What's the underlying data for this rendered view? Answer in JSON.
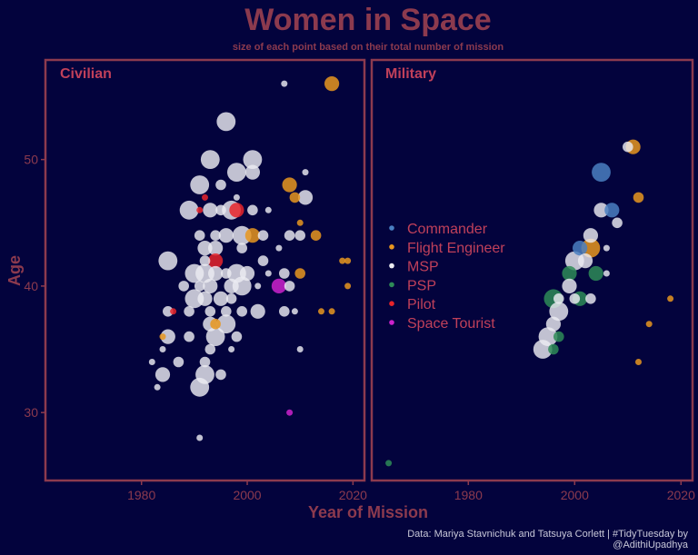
{
  "title": "Women in Space",
  "subtitle": "size of each point based on their total number of mission",
  "caption_line1": "Data: Mariya Stavnichuk and Tatsuya Corlett | #TidyTuesday by",
  "caption_line2": "@AdithiUpadhya",
  "colors": {
    "background": "#03033d",
    "text": "#8c3a4e",
    "frame": "#8c3a4e",
    "Commander": "#4a7fc1",
    "Flight Engineer": "#e8961e",
    "MSP": "#ececf2",
    "PSP": "#2e8b57",
    "Pilot": "#e8242a",
    "Space Tourist": "#cc22cc"
  },
  "chart_data": {
    "type": "scatter",
    "xlabel": "Year of Mission",
    "ylabel": "Age",
    "xlim": [
      1962,
      2022
    ],
    "ylim": [
      24.7,
      57.8
    ],
    "x_ticks": [
      1980,
      2000,
      2020
    ],
    "y_ticks": [
      30,
      40,
      50
    ],
    "size_meaning": "total number of missions",
    "legend": {
      "placement": "left of Military panel",
      "entries": [
        "Commander",
        "Flight Engineer",
        "MSP",
        "PSP",
        "Pilot",
        "Space Tourist"
      ]
    },
    "panels": [
      {
        "name": "Civilian",
        "points": [
          {
            "x": 2016,
            "y": 56,
            "size": 3,
            "role": "Flight Engineer"
          },
          {
            "x": 2007,
            "y": 56,
            "size": 1,
            "role": "MSP"
          },
          {
            "x": 1996,
            "y": 53,
            "size": 4,
            "role": "MSP"
          },
          {
            "x": 1993,
            "y": 50,
            "size": 4,
            "role": "MSP"
          },
          {
            "x": 2001,
            "y": 50,
            "size": 4,
            "role": "MSP"
          },
          {
            "x": 1998,
            "y": 49,
            "size": 4,
            "role": "MSP"
          },
          {
            "x": 2001,
            "y": 49,
            "size": 3,
            "role": "MSP"
          },
          {
            "x": 2011,
            "y": 49,
            "size": 1,
            "role": "MSP"
          },
          {
            "x": 1991,
            "y": 48,
            "size": 4,
            "role": "MSP"
          },
          {
            "x": 2008,
            "y": 48,
            "size": 3,
            "role": "Flight Engineer"
          },
          {
            "x": 1995,
            "y": 48,
            "size": 2,
            "role": "MSP"
          },
          {
            "x": 1992,
            "y": 47,
            "size": 1,
            "role": "Pilot"
          },
          {
            "x": 2009,
            "y": 47,
            "size": 2,
            "role": "Flight Engineer"
          },
          {
            "x": 2011,
            "y": 47,
            "size": 3,
            "role": "MSP"
          },
          {
            "x": 1998,
            "y": 47,
            "size": 1,
            "role": "MSP"
          },
          {
            "x": 1989,
            "y": 46,
            "size": 4,
            "role": "MSP"
          },
          {
            "x": 1993,
            "y": 46,
            "size": 3,
            "role": "MSP"
          },
          {
            "x": 1995,
            "y": 46,
            "size": 2,
            "role": "MSP"
          },
          {
            "x": 1997,
            "y": 46,
            "size": 4,
            "role": "MSP"
          },
          {
            "x": 1998,
            "y": 46,
            "size": 3,
            "role": "Pilot"
          },
          {
            "x": 2001,
            "y": 46,
            "size": 2,
            "role": "MSP"
          },
          {
            "x": 2004,
            "y": 46,
            "size": 1,
            "role": "MSP"
          },
          {
            "x": 1991,
            "y": 46,
            "size": 1,
            "role": "Pilot"
          },
          {
            "x": 2010,
            "y": 45,
            "size": 1,
            "role": "Flight Engineer"
          },
          {
            "x": 1991,
            "y": 44,
            "size": 2,
            "role": "MSP"
          },
          {
            "x": 1994,
            "y": 44,
            "size": 2,
            "role": "MSP"
          },
          {
            "x": 1996,
            "y": 44,
            "size": 3,
            "role": "MSP"
          },
          {
            "x": 1999,
            "y": 44,
            "size": 4,
            "role": "MSP"
          },
          {
            "x": 2001,
            "y": 44,
            "size": 3,
            "role": "Flight Engineer"
          },
          {
            "x": 2003,
            "y": 44,
            "size": 2,
            "role": "MSP"
          },
          {
            "x": 2008,
            "y": 44,
            "size": 2,
            "role": "MSP"
          },
          {
            "x": 2010,
            "y": 44,
            "size": 2,
            "role": "MSP"
          },
          {
            "x": 2013,
            "y": 44,
            "size": 2,
            "role": "Flight Engineer"
          },
          {
            "x": 1992,
            "y": 43,
            "size": 3,
            "role": "MSP"
          },
          {
            "x": 1994,
            "y": 43,
            "size": 3,
            "role": "MSP"
          },
          {
            "x": 1999,
            "y": 43,
            "size": 2,
            "role": "MSP"
          },
          {
            "x": 2006,
            "y": 43,
            "size": 1,
            "role": "MSP"
          },
          {
            "x": 1985,
            "y": 42,
            "size": 4,
            "role": "MSP"
          },
          {
            "x": 1992,
            "y": 42,
            "size": 2,
            "role": "MSP"
          },
          {
            "x": 1994,
            "y": 42,
            "size": 3,
            "role": "Pilot"
          },
          {
            "x": 2003,
            "y": 42,
            "size": 2,
            "role": "MSP"
          },
          {
            "x": 2018,
            "y": 42,
            "size": 1,
            "role": "Flight Engineer"
          },
          {
            "x": 2019,
            "y": 42,
            "size": 1,
            "role": "Flight Engineer"
          },
          {
            "x": 1990,
            "y": 41,
            "size": 4,
            "role": "MSP"
          },
          {
            "x": 1992,
            "y": 41,
            "size": 4,
            "role": "MSP"
          },
          {
            "x": 1994,
            "y": 41,
            "size": 3,
            "role": "MSP"
          },
          {
            "x": 1996,
            "y": 41,
            "size": 2,
            "role": "MSP"
          },
          {
            "x": 1998,
            "y": 41,
            "size": 4,
            "role": "MSP"
          },
          {
            "x": 2000,
            "y": 41,
            "size": 3,
            "role": "MSP"
          },
          {
            "x": 2004,
            "y": 41,
            "size": 1,
            "role": "MSP"
          },
          {
            "x": 2007,
            "y": 41,
            "size": 2,
            "role": "MSP"
          },
          {
            "x": 2010,
            "y": 41,
            "size": 2,
            "role": "Flight Engineer"
          },
          {
            "x": 1988,
            "y": 40,
            "size": 2,
            "role": "MSP"
          },
          {
            "x": 1991,
            "y": 40,
            "size": 2,
            "role": "MSP"
          },
          {
            "x": 1993,
            "y": 40,
            "size": 3,
            "role": "MSP"
          },
          {
            "x": 1997,
            "y": 40,
            "size": 3,
            "role": "MSP"
          },
          {
            "x": 1999,
            "y": 40,
            "size": 4,
            "role": "MSP"
          },
          {
            "x": 2002,
            "y": 40,
            "size": 1,
            "role": "MSP"
          },
          {
            "x": 2006,
            "y": 40,
            "size": 3,
            "role": "Space Tourist"
          },
          {
            "x": 2008,
            "y": 40,
            "size": 2,
            "role": "MSP"
          },
          {
            "x": 2019,
            "y": 40,
            "size": 1,
            "role": "Flight Engineer"
          },
          {
            "x": 1990,
            "y": 39,
            "size": 4,
            "role": "MSP"
          },
          {
            "x": 1992,
            "y": 39,
            "size": 3,
            "role": "MSP"
          },
          {
            "x": 1995,
            "y": 39,
            "size": 3,
            "role": "MSP"
          },
          {
            "x": 1997,
            "y": 39,
            "size": 2,
            "role": "MSP"
          },
          {
            "x": 1985,
            "y": 38,
            "size": 2,
            "role": "MSP"
          },
          {
            "x": 1986,
            "y": 38,
            "size": 1,
            "role": "Pilot"
          },
          {
            "x": 1989,
            "y": 38,
            "size": 2,
            "role": "MSP"
          },
          {
            "x": 1993,
            "y": 38,
            "size": 2,
            "role": "MSP"
          },
          {
            "x": 1996,
            "y": 38,
            "size": 2,
            "role": "MSP"
          },
          {
            "x": 1999,
            "y": 38,
            "size": 2,
            "role": "MSP"
          },
          {
            "x": 2002,
            "y": 38,
            "size": 3,
            "role": "MSP"
          },
          {
            "x": 2007,
            "y": 38,
            "size": 2,
            "role": "MSP"
          },
          {
            "x": 2009,
            "y": 38,
            "size": 1,
            "role": "MSP"
          },
          {
            "x": 2014,
            "y": 38,
            "size": 1,
            "role": "Flight Engineer"
          },
          {
            "x": 2016,
            "y": 38,
            "size": 1,
            "role": "Flight Engineer"
          },
          {
            "x": 1993,
            "y": 37,
            "size": 3,
            "role": "MSP"
          },
          {
            "x": 1994,
            "y": 37,
            "size": 2,
            "role": "Flight Engineer"
          },
          {
            "x": 1996,
            "y": 37,
            "size": 4,
            "role": "MSP"
          },
          {
            "x": 1989,
            "y": 36,
            "size": 2,
            "role": "MSP"
          },
          {
            "x": 1985,
            "y": 36,
            "size": 3,
            "role": "MSP"
          },
          {
            "x": 1984,
            "y": 36,
            "size": 1,
            "role": "Flight Engineer"
          },
          {
            "x": 1994,
            "y": 36,
            "size": 4,
            "role": "MSP"
          },
          {
            "x": 1998,
            "y": 36,
            "size": 2,
            "role": "MSP"
          },
          {
            "x": 1984,
            "y": 35,
            "size": 1,
            "role": "MSP"
          },
          {
            "x": 1993,
            "y": 35,
            "size": 2,
            "role": "MSP"
          },
          {
            "x": 1997,
            "y": 35,
            "size": 1,
            "role": "MSP"
          },
          {
            "x": 2010,
            "y": 35,
            "size": 1,
            "role": "MSP"
          },
          {
            "x": 1987,
            "y": 34,
            "size": 2,
            "role": "MSP"
          },
          {
            "x": 1982,
            "y": 34,
            "size": 1,
            "role": "MSP"
          },
          {
            "x": 1992,
            "y": 34,
            "size": 2,
            "role": "MSP"
          },
          {
            "x": 1984,
            "y": 33,
            "size": 3,
            "role": "MSP"
          },
          {
            "x": 1992,
            "y": 33,
            "size": 4,
            "role": "MSP"
          },
          {
            "x": 1995,
            "y": 33,
            "size": 2,
            "role": "MSP"
          },
          {
            "x": 1983,
            "y": 32,
            "size": 1,
            "role": "MSP"
          },
          {
            "x": 1991,
            "y": 32,
            "size": 4,
            "role": "MSP"
          },
          {
            "x": 2008,
            "y": 30,
            "size": 1,
            "role": "Space Tourist"
          },
          {
            "x": 1991,
            "y": 28,
            "size": 1,
            "role": "MSP"
          }
        ]
      },
      {
        "name": "Military",
        "points": [
          {
            "x": 2010,
            "y": 51,
            "size": 2,
            "role": "MSP"
          },
          {
            "x": 2011,
            "y": 51,
            "size": 3,
            "role": "Flight Engineer"
          },
          {
            "x": 2005,
            "y": 49,
            "size": 4,
            "role": "Commander"
          },
          {
            "x": 2012,
            "y": 47,
            "size": 2,
            "role": "Flight Engineer"
          },
          {
            "x": 2005,
            "y": 46,
            "size": 3,
            "role": "MSP"
          },
          {
            "x": 2007,
            "y": 46,
            "size": 3,
            "role": "Commander"
          },
          {
            "x": 2008,
            "y": 45,
            "size": 2,
            "role": "MSP"
          },
          {
            "x": 2003,
            "y": 44,
            "size": 3,
            "role": "MSP"
          },
          {
            "x": 2001,
            "y": 43,
            "size": 3,
            "role": "Commander"
          },
          {
            "x": 2003,
            "y": 43,
            "size": 4,
            "role": "Flight Engineer"
          },
          {
            "x": 2006,
            "y": 43,
            "size": 1,
            "role": "MSP"
          },
          {
            "x": 2002,
            "y": 42,
            "size": 3,
            "role": "MSP"
          },
          {
            "x": 2000,
            "y": 42,
            "size": 4,
            "role": "MSP"
          },
          {
            "x": 1999,
            "y": 41,
            "size": 3,
            "role": "PSP"
          },
          {
            "x": 2004,
            "y": 41,
            "size": 3,
            "role": "PSP"
          },
          {
            "x": 2006,
            "y": 41,
            "size": 1,
            "role": "MSP"
          },
          {
            "x": 1999,
            "y": 40,
            "size": 3,
            "role": "MSP"
          },
          {
            "x": 1997,
            "y": 39,
            "size": 2,
            "role": "MSP"
          },
          {
            "x": 1996,
            "y": 39,
            "size": 4,
            "role": "PSP"
          },
          {
            "x": 2001,
            "y": 39,
            "size": 3,
            "role": "PSP"
          },
          {
            "x": 2003,
            "y": 39,
            "size": 2,
            "role": "MSP"
          },
          {
            "x": 2000,
            "y": 39,
            "size": 2,
            "role": "MSP"
          },
          {
            "x": 2018,
            "y": 39,
            "size": 1,
            "role": "Flight Engineer"
          },
          {
            "x": 1997,
            "y": 38,
            "size": 4,
            "role": "MSP"
          },
          {
            "x": 1996,
            "y": 37,
            "size": 3,
            "role": "MSP"
          },
          {
            "x": 2014,
            "y": 37,
            "size": 1,
            "role": "Flight Engineer"
          },
          {
            "x": 1995,
            "y": 36,
            "size": 4,
            "role": "MSP"
          },
          {
            "x": 1997,
            "y": 36,
            "size": 2,
            "role": "PSP"
          },
          {
            "x": 1994,
            "y": 35,
            "size": 4,
            "role": "MSP"
          },
          {
            "x": 1996,
            "y": 35,
            "size": 2,
            "role": "PSP"
          },
          {
            "x": 2012,
            "y": 34,
            "size": 1,
            "role": "Flight Engineer"
          },
          {
            "x": 1965,
            "y": 26,
            "size": 1,
            "role": "PSP"
          }
        ]
      }
    ]
  }
}
